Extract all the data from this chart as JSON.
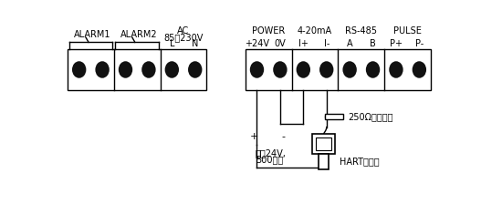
{
  "bg_color": "#ffffff",
  "border_color": "#000000",
  "terminal_color": "#111111",
  "wire_color": "#000000",
  "text_color": "#000000",
  "group1_label": "ALARM1",
  "group2_label": "ALARM2",
  "group3_line1": "AC",
  "group3_line2": "85～230V",
  "group3_sub": [
    "L",
    "N"
  ],
  "group4_label": "POWER",
  "group4_sub": [
    "+24V",
    "0V"
  ],
  "group5_label": "4-20mA",
  "group5_sub": [
    "I+",
    "I-"
  ],
  "group6_label": "RS-485",
  "group6_sub": [
    "A",
    "B"
  ],
  "group7_label": "PULSE",
  "group7_sub": [
    "P+",
    "P-"
  ],
  "resistor_label": "250Ω采样电阱",
  "power_line1": "直流24V,",
  "power_line2": "500毫安",
  "hart_label": "HART手操器",
  "figsize": [
    5.5,
    2.46
  ],
  "dpi": 100
}
